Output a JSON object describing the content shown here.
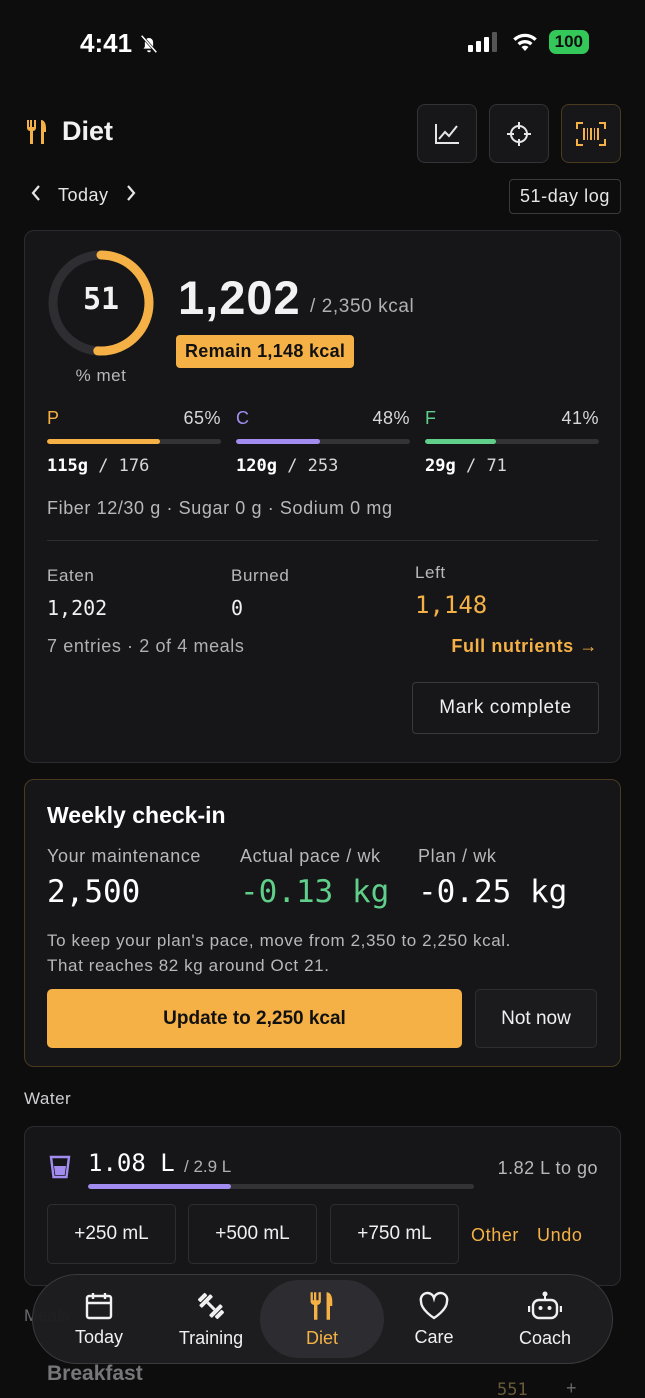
{
  "status_bar": {
    "time": "4:41",
    "battery": "100"
  },
  "header": {
    "title": "Diet",
    "icons": [
      "chart-icon",
      "target-icon",
      "barcode-icon"
    ]
  },
  "date_nav": {
    "label": "Today",
    "log_badge": "51-day log"
  },
  "summary": {
    "percent_met": "51",
    "percent_met_fraction": 0.51,
    "percent_caption": "% met",
    "calories_eaten": "1,202",
    "calories_goal": "/ 2,350 kcal",
    "remain_badge": "Remain 1,148 kcal",
    "macros": [
      {
        "letter": "P",
        "pct": "65%",
        "fill": 0.65,
        "value": "115g",
        "goal": "/ 176",
        "color": "#f5b146"
      },
      {
        "letter": "C",
        "pct": "48%",
        "fill": 0.48,
        "value": "120g",
        "goal": "/ 253",
        "color": "#a28cf0"
      },
      {
        "letter": "F",
        "pct": "41%",
        "fill": 0.41,
        "value": "29g",
        "goal": "/ 71",
        "color": "#5fcf8a"
      }
    ],
    "micro_line": "Fiber 12/30 g · Sugar 0 g · Sodium 0 mg",
    "eaten_label": "Eaten",
    "eaten_value": "1,202",
    "burned_label": "Burned",
    "burned_value": "0",
    "left_label": "Left",
    "left_value": "1,148",
    "entries_line": "7 entries · 2 of 4 meals",
    "full_nutrients_link": "Full nutrients →",
    "mark_complete": "Mark complete"
  },
  "weekly": {
    "title": "Weekly check-in",
    "maintenance_label": "Your maintenance",
    "maintenance_value": "2,500",
    "pace_label": "Actual pace / wk",
    "pace_value": "-0.13 kg",
    "plan_label": "Plan / wk",
    "plan_value": "-0.25 kg",
    "desc_line1": "To keep your plan's pace, move from 2,350 to 2,250 kcal.",
    "desc_line2": "That reaches 82 kg around Oct 21.",
    "update_button": "Update to 2,250 kcal",
    "not_now_button": "Not now"
  },
  "water": {
    "section_label": "Water",
    "amount": "1.08 L",
    "goal": "/ 2.9 L",
    "to_go": "1.82 L to go",
    "fill": 0.37,
    "buttons": [
      "+250 mL",
      "+500 mL",
      "+750 mL"
    ],
    "other": "Other",
    "undo": "Undo"
  },
  "meals": {
    "section_label": "Meals",
    "breakfast": "Breakfast",
    "breakfast_kcal": "551",
    "add": "+"
  },
  "tabs": [
    {
      "label": "Today",
      "icon": "calendar-icon"
    },
    {
      "label": "Training",
      "icon": "dumbbell-icon"
    },
    {
      "label": "Diet",
      "icon": "fork-knife-icon",
      "active": true
    },
    {
      "label": "Care",
      "icon": "heart-icon"
    },
    {
      "label": "Coach",
      "icon": "robot-icon"
    }
  ],
  "colors": {
    "accent": "#f5b146",
    "carb": "#a28cf0",
    "fat": "#5fcf8a",
    "background": "#0d0d0e"
  }
}
